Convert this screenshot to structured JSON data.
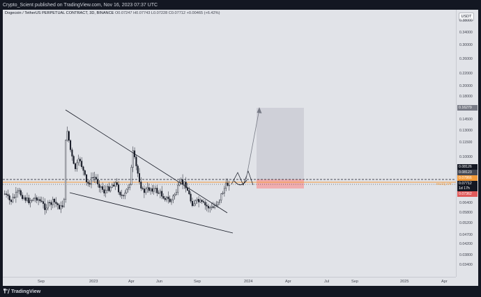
{
  "header": {
    "published": "Crypto_Scient published on TradingView.com, Nov 16, 2023 07:37 UTC"
  },
  "legend": {
    "symbol": "Dogecoin / TetherUS PERPETUAL CONTRACT, 3D, BINANCE",
    "ohlc": "O0.07247 H0.07743 L0.07228 C0.07712 +0.00465 (+6.42%)"
  },
  "price_axis": {
    "currency": "USDT",
    "ticks": [
      "0.38000",
      "0.34000",
      "0.30000",
      "0.26000",
      "0.22000",
      "0.20000",
      "0.18000",
      "0.14500",
      "0.13000",
      "0.11500",
      "0.10000",
      "0.06400",
      "0.05800",
      "0.05200",
      "0.04700",
      "0.04200",
      "0.03800",
      "0.03400"
    ],
    "tags": [
      {
        "label": "0.16279",
        "color": "#787b86"
      },
      {
        "label": "0.08126",
        "color": "#131722"
      },
      {
        "label": "0.08123",
        "color": "#434651"
      },
      {
        "label": "0.07866",
        "color": "#f29a3a"
      },
      {
        "label": "0.07712",
        "color": "#131722"
      },
      {
        "label": "1d 17h",
        "color": "#131722"
      },
      {
        "label": "0.07362",
        "color": "#e05a5a"
      }
    ],
    "weekly_level_label": "Weekly S/R"
  },
  "time_axis": {
    "labels": [
      "Sep",
      "2023",
      "Apr",
      "Jun",
      "Sep",
      "2024",
      "Apr",
      "Jul",
      "Sep",
      "2025",
      "Apr"
    ]
  },
  "footer": {
    "brand": "TradingView"
  },
  "colors": {
    "chart_background": "#e1e3e8",
    "frame_background": "#131722",
    "candles": "#131722",
    "weekly_level": "#f29a3a",
    "target_zone": "#c8cad3",
    "stop_zone": "#f2a6a8"
  }
}
